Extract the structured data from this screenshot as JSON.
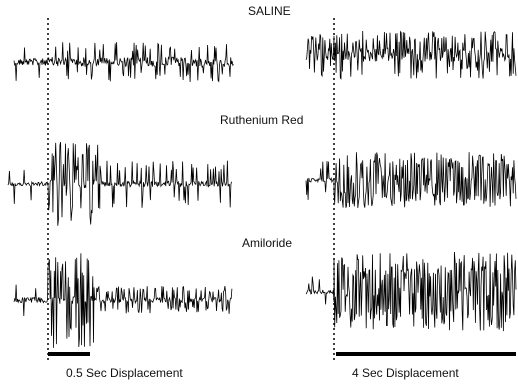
{
  "figure": {
    "conditions": [
      "SALINE",
      "Ruthenium Red",
      "Amiloride"
    ],
    "captions": [
      "0.5 Sec Displacement",
      "4 Sec Displacement"
    ],
    "trace_color": "#000000",
    "background_color": "#ffffff"
  }
}
